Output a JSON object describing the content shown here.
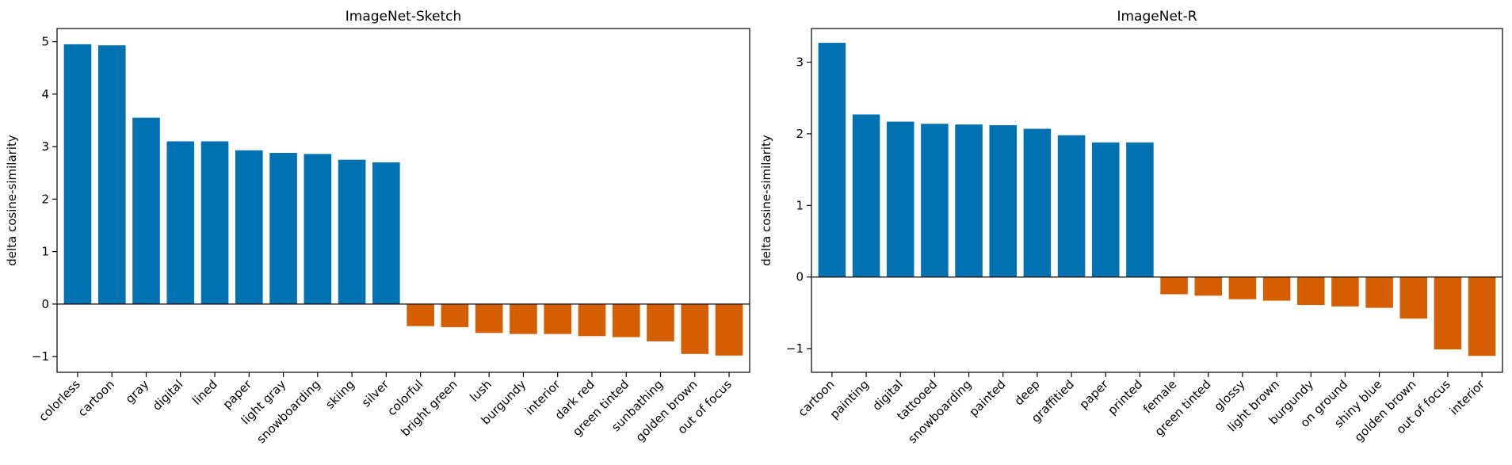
{
  "colors": {
    "positive": "#0072B2",
    "negative": "#D55E00",
    "axis": "#000000"
  },
  "chart_data": [
    {
      "type": "bar",
      "title": "ImageNet-Sketch",
      "ylabel": "delta cosine-similarity",
      "xlabel": "",
      "ylim": [
        -1.3,
        5.25
      ],
      "yticks": [
        -1,
        0,
        1,
        2,
        3,
        4,
        5
      ],
      "grid": false,
      "categories": [
        "colorless",
        "cartoon",
        "gray",
        "digital",
        "lined",
        "paper",
        "light gray",
        "snowboarding",
        "skiing",
        "silver",
        "colorful",
        "bright green",
        "lush",
        "burgundy",
        "interior",
        "dark red",
        "green tinted",
        "sunbathing",
        "golden brown",
        "out of focus"
      ],
      "values": [
        4.95,
        4.93,
        3.55,
        3.1,
        3.1,
        2.93,
        2.88,
        2.86,
        2.75,
        2.7,
        -0.42,
        -0.44,
        -0.55,
        -0.57,
        -0.57,
        -0.61,
        -0.63,
        -0.71,
        -0.95,
        -0.98
      ]
    },
    {
      "type": "bar",
      "title": "ImageNet-R",
      "ylabel": "delta cosine-similarity",
      "xlabel": "",
      "ylim": [
        -1.33,
        3.47
      ],
      "yticks": [
        -1,
        0,
        1,
        2,
        3
      ],
      "grid": false,
      "categories": [
        "cartoon",
        "painting",
        "digital",
        "tattooed",
        "snowboarding",
        "painted",
        "deep",
        "graffitied",
        "paper",
        "printed",
        "female",
        "green tinted",
        "glossy",
        "light brown",
        "burgundy",
        "on ground",
        "shiny blue",
        "golden brown",
        "out of focus",
        "interior"
      ],
      "values": [
        3.27,
        2.27,
        2.17,
        2.14,
        2.13,
        2.12,
        2.07,
        1.98,
        1.88,
        1.88,
        -0.24,
        -0.26,
        -0.31,
        -0.33,
        -0.39,
        -0.41,
        -0.43,
        -0.58,
        -1.01,
        -1.1
      ]
    }
  ]
}
